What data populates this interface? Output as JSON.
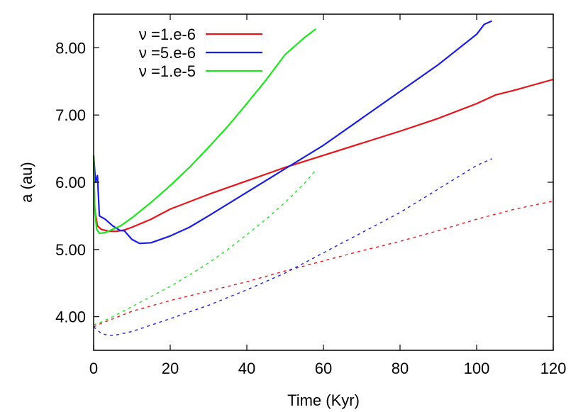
{
  "chart_data": {
    "type": "line",
    "title": "",
    "xlabel": "Time (Kyr)",
    "ylabel": "a (au)",
    "xlim": [
      0,
      120
    ],
    "ylim": [
      3.5,
      8.5
    ],
    "xticks": [
      0,
      20,
      40,
      60,
      80,
      100,
      120
    ],
    "xtick_labels": [
      "0",
      "20",
      "40",
      "60",
      "80",
      "100",
      "120"
    ],
    "yticks": [
      4,
      5,
      6,
      7,
      8
    ],
    "ytick_labels": [
      "4.00",
      "5.00",
      "6.00",
      "7.00",
      "8.00"
    ],
    "grid": false,
    "legend_position": "top-left",
    "series": [
      {
        "name": "ν =1.e-6",
        "color": "#e8141a",
        "style": "solid",
        "x": [
          0,
          0.3,
          1,
          2,
          4,
          6,
          8,
          10,
          15,
          20,
          30,
          40,
          50,
          60,
          70,
          80,
          90,
          100,
          105,
          110,
          115,
          120
        ],
        "y": [
          6.3,
          5.6,
          5.35,
          5.3,
          5.27,
          5.27,
          5.29,
          5.33,
          5.45,
          5.6,
          5.82,
          6.02,
          6.22,
          6.4,
          6.58,
          6.76,
          6.95,
          7.17,
          7.3,
          7.37,
          7.45,
          7.53
        ]
      },
      {
        "name": "ν =5.e-6",
        "color": "#1a1ee0",
        "style": "solid",
        "x": [
          0,
          0.5,
          1,
          1.5,
          3,
          5,
          7,
          8,
          10,
          12,
          15,
          20,
          25,
          30,
          40,
          50,
          60,
          70,
          80,
          90,
          100,
          102,
          104
        ],
        "y": [
          6.4,
          6.0,
          6.1,
          5.5,
          5.45,
          5.35,
          5.28,
          5.28,
          5.15,
          5.09,
          5.1,
          5.2,
          5.33,
          5.5,
          5.85,
          6.2,
          6.55,
          6.95,
          7.35,
          7.75,
          8.2,
          8.35,
          8.4
        ]
      },
      {
        "name": "ν =1.e-5",
        "color": "#1ee51e",
        "style": "solid",
        "x": [
          0,
          0.3,
          0.8,
          1.5,
          3,
          5,
          7,
          10,
          15,
          20,
          25,
          30,
          35,
          40,
          45,
          50,
          55,
          58
        ],
        "y": [
          6.4,
          5.6,
          5.3,
          5.24,
          5.25,
          5.3,
          5.35,
          5.47,
          5.7,
          5.95,
          6.22,
          6.52,
          6.83,
          7.17,
          7.52,
          7.9,
          8.15,
          8.28
        ]
      },
      {
        "color": "#e8141a",
        "style": "dashed",
        "x": [
          0,
          2,
          10,
          20,
          30,
          40,
          50,
          60,
          70,
          80,
          90,
          100,
          110,
          120
        ],
        "y": [
          3.85,
          3.9,
          4.08,
          4.24,
          4.38,
          4.52,
          4.68,
          4.83,
          4.98,
          5.12,
          5.28,
          5.45,
          5.6,
          5.72
        ]
      },
      {
        "color": "#1a1ee0",
        "style": "dashed",
        "x": [
          0,
          2,
          4,
          6,
          10,
          20,
          30,
          40,
          50,
          60,
          70,
          80,
          90,
          100,
          104
        ],
        "y": [
          3.85,
          3.75,
          3.72,
          3.73,
          3.78,
          3.97,
          4.17,
          4.4,
          4.65,
          4.95,
          5.25,
          5.55,
          5.9,
          6.25,
          6.35
        ]
      },
      {
        "color": "#1ee51e",
        "style": "dashed",
        "x": [
          0,
          2,
          5,
          10,
          15,
          20,
          25,
          30,
          35,
          40,
          45,
          50,
          55,
          58
        ],
        "y": [
          3.88,
          3.92,
          4.0,
          4.15,
          4.3,
          4.45,
          4.62,
          4.8,
          5.0,
          5.22,
          5.45,
          5.7,
          5.98,
          6.18
        ]
      }
    ]
  }
}
